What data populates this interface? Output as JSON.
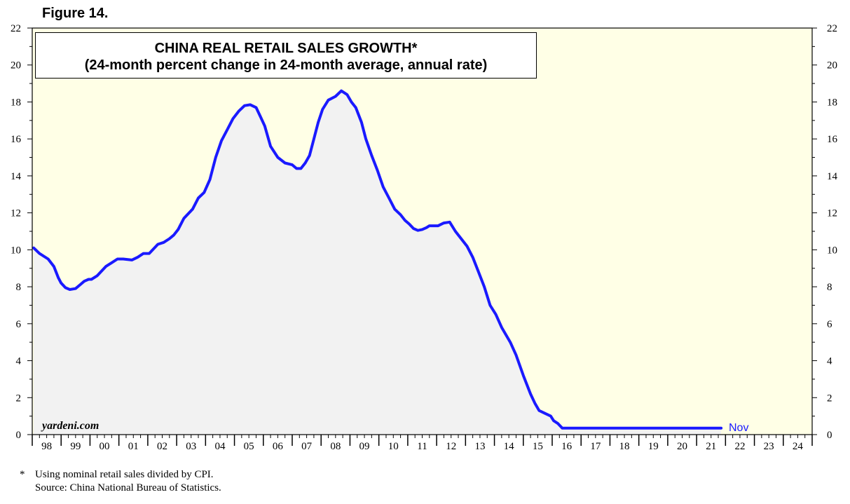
{
  "figure_label": "Figure 14.",
  "footnote": {
    "star": "*",
    "note": "Using nominal retail sales divided by CPI.",
    "source": "Source: China National Bureau of Statistics."
  },
  "watermark": "yardeni.com",
  "colors": {
    "line": "#1a1aff",
    "plot_background": "#ffffe6",
    "area_fill": "#f2f2f2"
  },
  "chart_data": {
    "type": "area",
    "title": "CHINA REAL RETAIL SALES GROWTH*",
    "subtitle": "(24-month percent change in 24-month average, annual rate)",
    "xlabel": "",
    "ylabel": "",
    "ylim": [
      0,
      22
    ],
    "xlim": [
      1997.95,
      2024.95
    ],
    "yticks": [
      0,
      2,
      4,
      6,
      8,
      10,
      12,
      14,
      16,
      18,
      20,
      22
    ],
    "year_labels": [
      "98",
      "99",
      "00",
      "01",
      "02",
      "03",
      "04",
      "05",
      "06",
      "07",
      "08",
      "09",
      "10",
      "11",
      "12",
      "13",
      "14",
      "15",
      "16",
      "17",
      "18",
      "19",
      "20",
      "21",
      "22",
      "23",
      "24"
    ],
    "grid": false,
    "end_annotation": "Nov",
    "series": [
      {
        "x": [
          1998.0,
          1998.2,
          1998.5,
          1998.7,
          1998.85,
          1998.95,
          1999.1,
          1999.25,
          1999.45,
          1999.6,
          1999.75,
          1999.9,
          2000.0,
          2000.2,
          2000.5,
          2000.7,
          2000.9,
          2001.1,
          2001.4,
          2001.6,
          2001.8,
          2002.0,
          2002.3,
          2002.5,
          2002.7,
          2002.85,
          2003.0,
          2003.2,
          2003.5,
          2003.7,
          2003.9,
          2004.1,
          2004.3,
          2004.5,
          2004.7,
          2004.9,
          2005.1,
          2005.3,
          2005.5,
          2005.7,
          2005.85,
          2006.0,
          2006.2,
          2006.45,
          2006.7,
          2006.95,
          2007.1,
          2007.25,
          2007.4,
          2007.55,
          2007.7,
          2007.85,
          2008.0,
          2008.2,
          2008.45,
          2008.65,
          2008.85,
          2009.0,
          2009.15,
          2009.35,
          2009.5,
          2009.7,
          2009.9,
          2010.1,
          2010.3,
          2010.5,
          2010.7,
          2010.85,
          2011.0,
          2011.15,
          2011.3,
          2011.45,
          2011.6,
          2011.7,
          2011.85,
          2012.0,
          2012.2,
          2012.4,
          2012.6,
          2012.8,
          2013.0,
          2013.2,
          2013.4,
          2013.6,
          2013.8,
          2014.0,
          2014.2,
          2014.5,
          2014.7,
          2014.95,
          2015.2,
          2015.35,
          2015.5,
          2015.7,
          2015.9,
          2016.0,
          2016.15,
          2016.3,
          2016.45,
          2016.6,
          2016.8,
          2017.0,
          2017.2,
          2017.4,
          2017.6,
          2017.8,
          2018.0,
          2018.2,
          2018.4,
          2018.6,
          2018.75,
          2018.95,
          2019.15,
          2019.35,
          2019.55,
          2019.75,
          2019.9,
          2020.0,
          2020.05,
          2020.15,
          2020.3,
          2020.5,
          2020.7,
          2020.85,
          2021.0,
          2021.2,
          2021.4,
          2021.55,
          2021.65,
          2021.8
        ],
        "y": [
          10.1,
          9.8,
          9.5,
          9.1,
          8.5,
          8.2,
          7.95,
          7.85,
          7.9,
          8.1,
          8.3,
          8.4,
          8.4,
          8.6,
          9.1,
          9.3,
          9.5,
          9.5,
          9.45,
          9.6,
          9.8,
          9.8,
          10.3,
          10.4,
          10.6,
          10.8,
          11.1,
          11.7,
          12.2,
          12.8,
          13.1,
          13.8,
          15.0,
          15.9,
          16.5,
          17.1,
          17.5,
          17.8,
          17.85,
          17.7,
          17.2,
          16.7,
          15.6,
          15.0,
          14.7,
          14.6,
          14.4,
          14.4,
          14.7,
          15.1,
          16.0,
          16.9,
          17.6,
          18.1,
          18.3,
          18.6,
          18.4,
          18.0,
          17.7,
          16.9,
          16.0,
          15.1,
          14.3,
          13.4,
          12.8,
          12.2,
          11.9,
          11.6,
          11.4,
          11.15,
          11.05,
          11.1,
          11.2,
          11.3,
          11.3,
          11.3,
          11.45,
          11.5,
          11.0,
          10.6,
          10.2,
          9.6,
          8.8,
          8.0,
          7.0,
          6.5,
          5.8,
          5.0,
          4.3,
          3.2,
          2.2,
          1.7,
          1.3,
          1.15,
          1.0,
          0.75,
          0.6,
          0.35,
          0.35,
          0.35,
          0.35,
          0.35,
          0.35,
          0.35,
          0.35,
          0.35,
          0.35,
          0.35,
          0.35,
          0.35,
          0.35,
          0.35,
          0.35,
          0.35,
          0.35,
          0.35,
          0.35,
          0.35,
          0.35,
          0.35,
          0.35,
          0.35,
          0.35,
          0.35,
          0.35,
          0.35,
          0.35,
          0.35,
          0.35,
          0.35
        ]
      }
    ]
  }
}
